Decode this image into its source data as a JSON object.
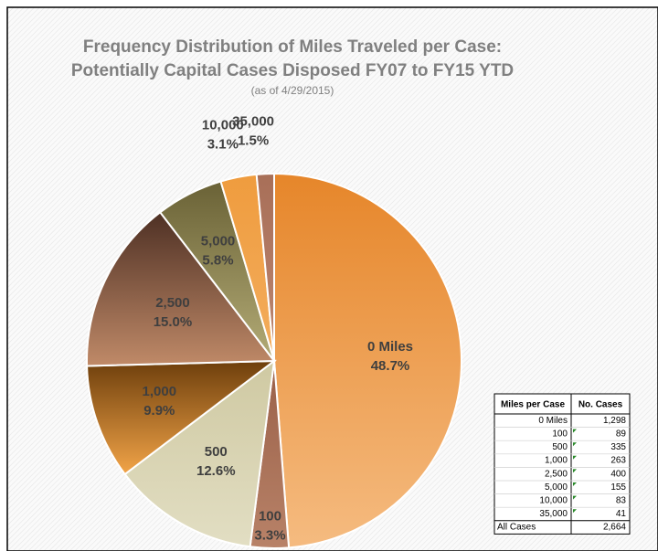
{
  "chart_data": {
    "type": "pie",
    "title": [
      "Frequency Distribution of Miles Traveled per Case:",
      "Potentially Capital Cases Disposed FY07 to FY15 YTD"
    ],
    "subtitle": "(as of 4/29/2015)",
    "categories": [
      "0 Miles",
      "100",
      "500",
      "1,000",
      "2,500",
      "5,000",
      "10,000",
      "35,000"
    ],
    "values": [
      48.7,
      3.3,
      12.6,
      9.9,
      15.0,
      5.8,
      3.1,
      1.5
    ],
    "value_labels": [
      "48.7%",
      "3.3%",
      "12.6%",
      "9.9%",
      "15.0%",
      "5.8%",
      "3.1%",
      "1.5%"
    ],
    "colors": [
      [
        "#e6862a",
        "#f5bb80"
      ],
      [
        "#9a6048",
        "#b88268"
      ],
      [
        "#cfc9a2",
        "#e2dec3"
      ],
      [
        "#6e3f0c",
        "#f2a448"
      ],
      [
        "#4e3024",
        "#c08a68"
      ],
      [
        "#6a6236",
        "#b3ab76"
      ],
      [
        "#ef9c3e",
        "#f3ad5e"
      ],
      [
        "#a86f58",
        "#bc8670"
      ]
    ]
  },
  "table": {
    "header": [
      "Miles per Case",
      "No. Cases"
    ],
    "rows": [
      [
        "0 Miles",
        "1,298"
      ],
      [
        "100",
        "89"
      ],
      [
        "500",
        "335"
      ],
      [
        "1,000",
        "263"
      ],
      [
        "2,500",
        "400"
      ],
      [
        "5,000",
        "155"
      ],
      [
        "10,000",
        "83"
      ],
      [
        "35,000",
        "41"
      ]
    ],
    "footer": [
      "All Cases",
      "2,664"
    ]
  }
}
